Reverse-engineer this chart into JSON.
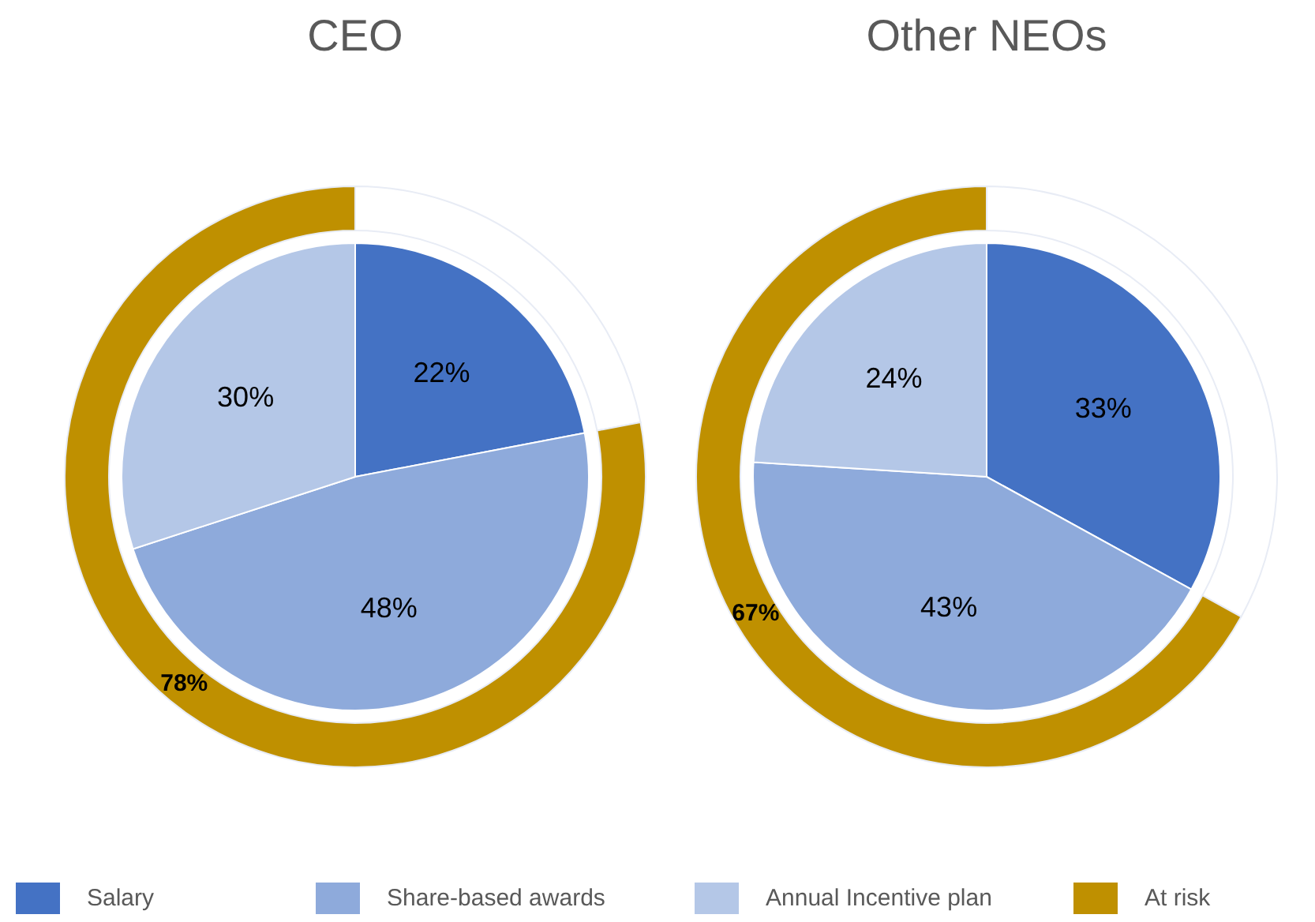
{
  "chart_data": [
    {
      "type": "pie",
      "title": "CEO",
      "categories": [
        "Salary",
        "Share-based awards",
        "Annual Incentive plan"
      ],
      "values": [
        22,
        48,
        30
      ],
      "colors": [
        "#4472c4",
        "#8eaadb",
        "#b4c7e7"
      ],
      "value_labels": [
        "22%",
        "48%",
        "30%"
      ],
      "legend": "bottom"
    },
    {
      "type": "donut",
      "categories": [
        null,
        "At risk"
      ],
      "values": [
        22,
        78
      ],
      "colors": [
        "#ffffff",
        "#bf9000"
      ],
      "value_labels": [
        null,
        "78%"
      ],
      "legend": "bottom"
    },
    {
      "type": "pie",
      "title": "Other NEOs",
      "categories": [
        null,
        null,
        null
      ],
      "values": [
        33,
        43,
        24
      ],
      "colors": [
        "#4472c4",
        "#8eaadb",
        "#b4c7e7"
      ],
      "value_labels": [
        "33%",
        "43%",
        "24%"
      ]
    },
    {
      "type": "donut",
      "categories": [
        null,
        null
      ],
      "values": [
        33,
        67
      ],
      "colors": [
        "#ffffff",
        "#bf9000"
      ],
      "value_labels": [
        null,
        "67%"
      ]
    }
  ]
}
